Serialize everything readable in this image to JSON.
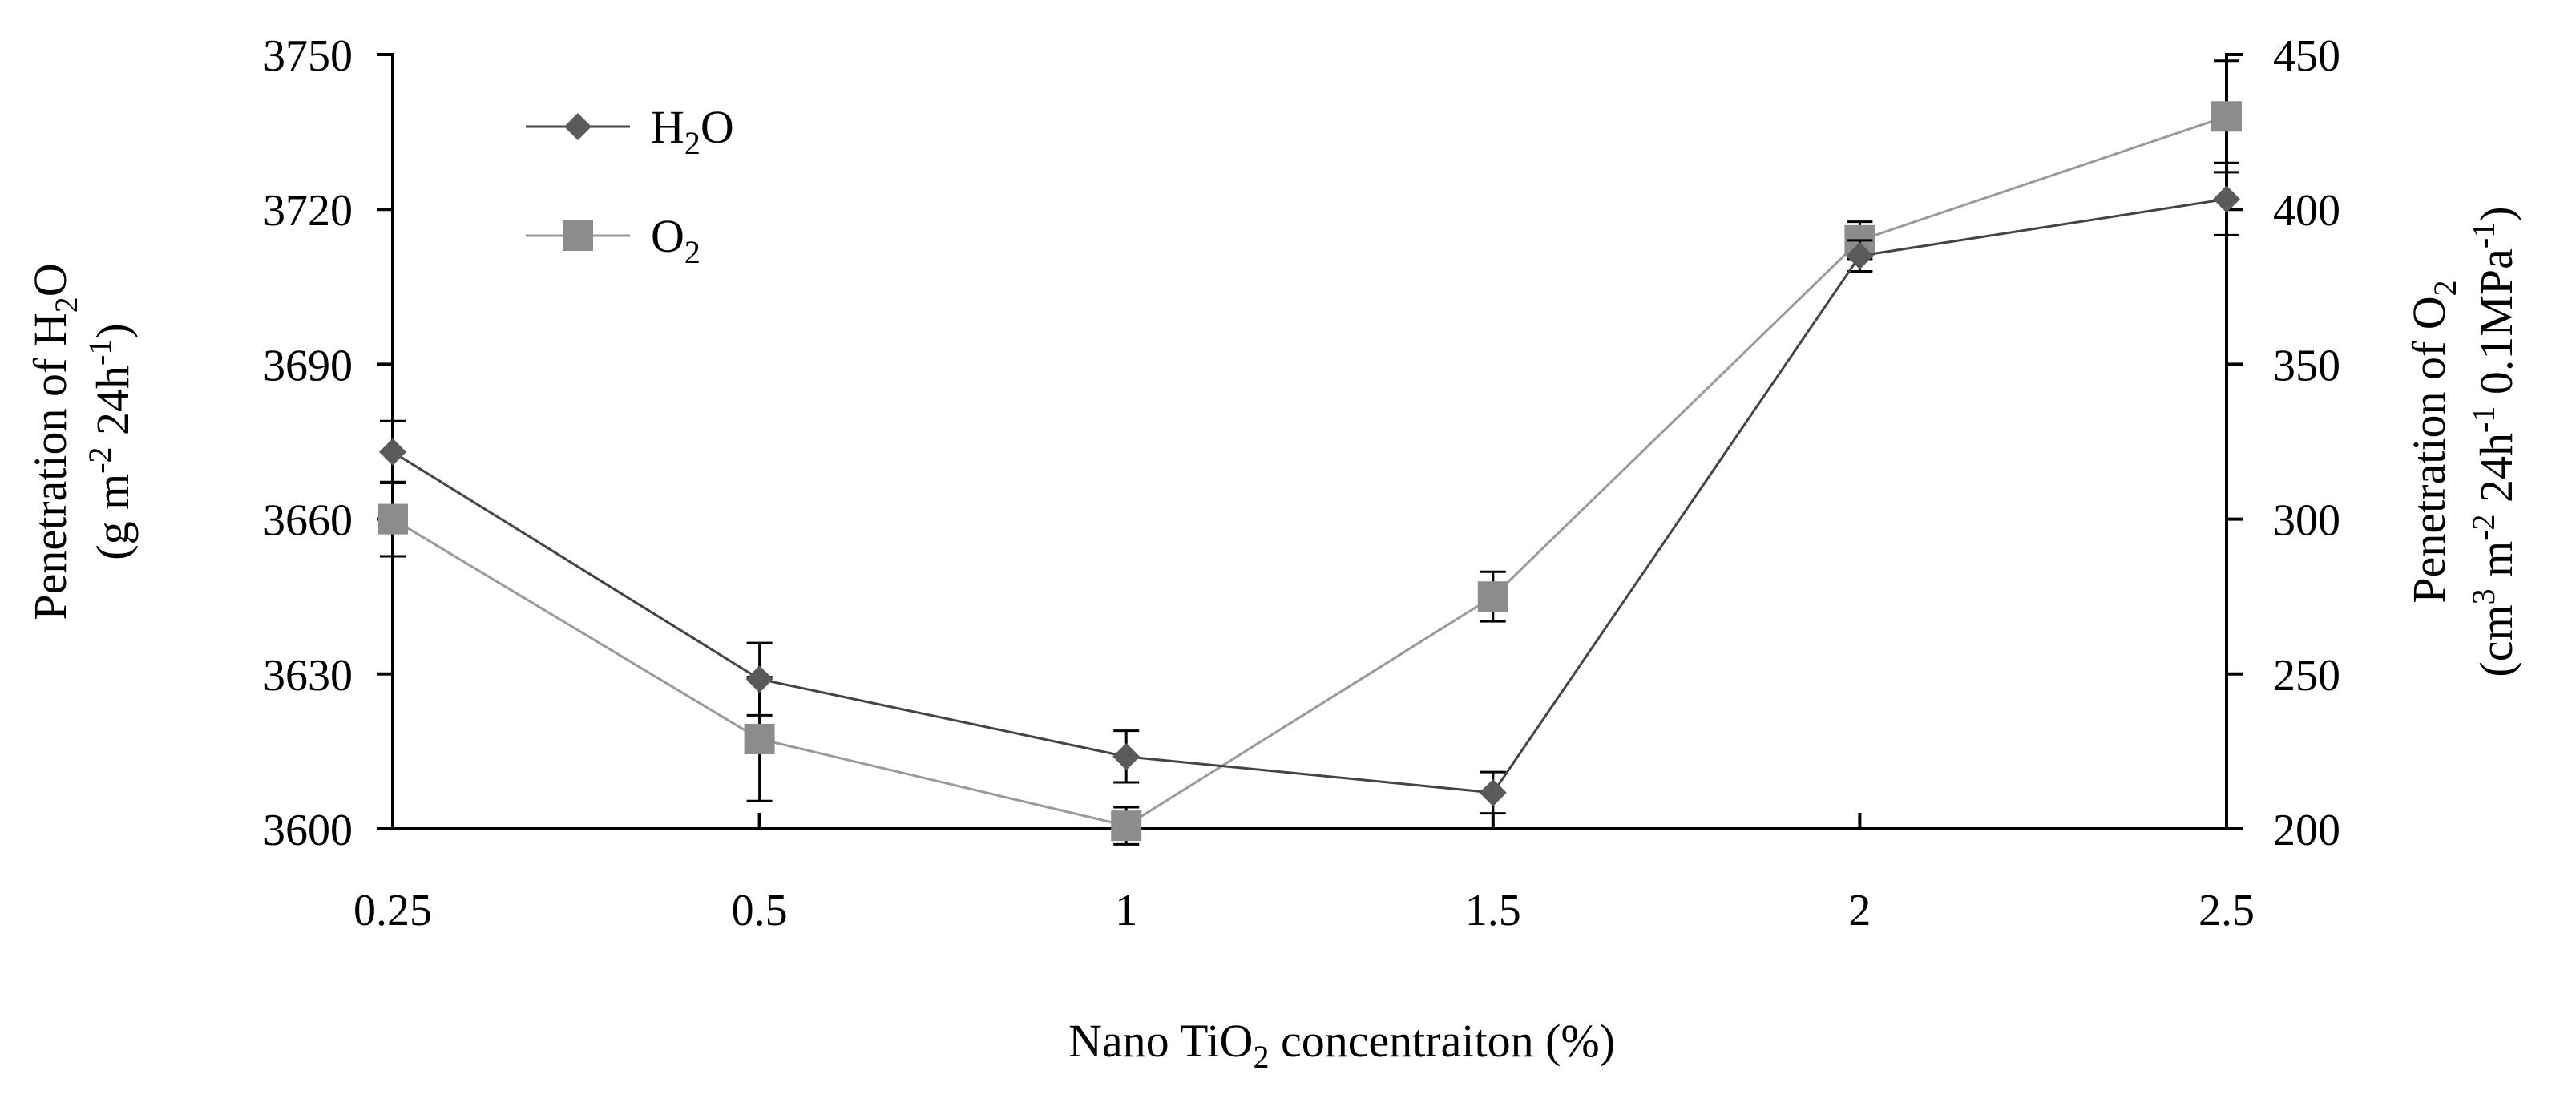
{
  "chart_data": {
    "type": "line",
    "categories": [
      "0.25",
      "0.5",
      "1",
      "1.5",
      "2",
      "2.5"
    ],
    "xlabel": "Nano TiO2 concentraiton (%)",
    "xlabel_parts": {
      "before": "Nano TiO",
      "sub": "2",
      "after": " concentraiton (%)"
    },
    "y_left": {
      "range": [
        3600,
        3750
      ],
      "ticks": [
        "3600",
        "3630",
        "3660",
        "3690",
        "3720",
        "3750"
      ],
      "label_line1": {
        "before": "Penetration of H",
        "sub": "2",
        "after": "O"
      },
      "label_line2": {
        "before": "(g m",
        "sup1": "-2",
        "mid": " 24h",
        "sup2": "-1",
        "after": ")"
      }
    },
    "y_right": {
      "range": [
        200,
        450
      ],
      "ticks": [
        "200",
        "250",
        "300",
        "350",
        "400",
        "450"
      ],
      "label_line1": {
        "before": "Penetration of O",
        "sub": "2",
        "after": ""
      },
      "label_line2": {
        "before": "(cm",
        "sup1": "3",
        "mid1": " m",
        "sup2": "-2",
        "mid2": " 24h",
        "sup3": "-1",
        "after": " 0.1MPa",
        "sup4": "-1",
        "end": ")"
      }
    },
    "series": [
      {
        "name": "H2O",
        "legend": {
          "before": "H",
          "sub": "2",
          "after": "O"
        },
        "axis": "left",
        "marker": "diamond",
        "color": "#5a5a5a",
        "values": [
          3673,
          3629,
          3614,
          3607,
          3711,
          3722
        ],
        "errors": [
          6,
          7,
          5,
          4,
          3,
          7
        ]
      },
      {
        "name": "O2",
        "legend": {
          "before": "O",
          "sub": "2",
          "after": ""
        },
        "axis": "right",
        "marker": "square",
        "color": "#8c8c8c",
        "values": [
          300,
          229,
          201,
          275,
          390,
          430
        ],
        "errors": [
          12,
          20,
          6,
          8,
          6,
          18
        ]
      }
    ]
  }
}
